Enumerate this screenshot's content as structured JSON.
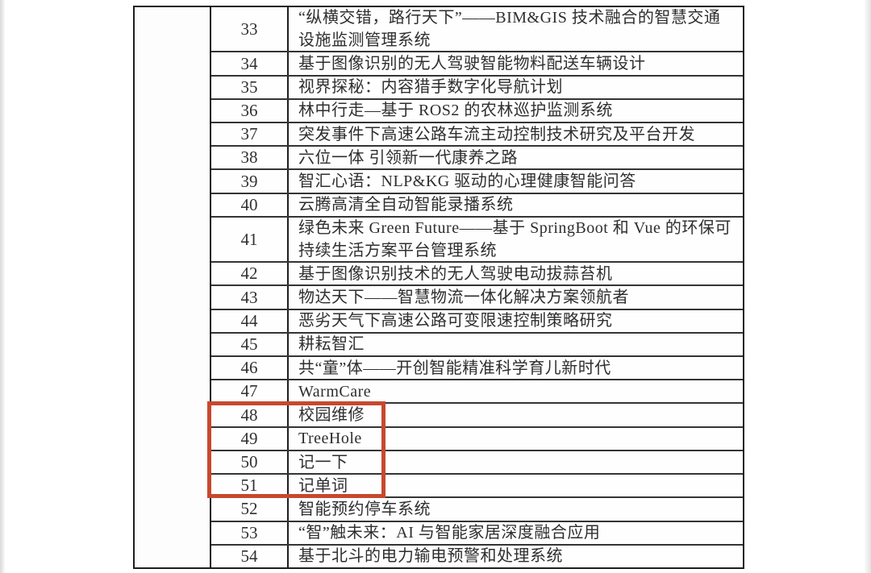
{
  "document": {
    "type": "scanned-table-page",
    "background": "#ffffff"
  },
  "table": {
    "rows": [
      {
        "no": "33",
        "title": "“纵横交错，路行天下”——BIM&GIS 技术融合的智慧交通设施监测管理系统",
        "tall": true,
        "highlighted": false
      },
      {
        "no": "34",
        "title": "基于图像识别的无人驾驶智能物料配送车辆设计",
        "tall": false,
        "highlighted": false
      },
      {
        "no": "35",
        "title": "视界探秘：内容猎手数字化导航计划",
        "tall": false,
        "highlighted": false
      },
      {
        "no": "36",
        "title": "林中行走—基于 ROS2 的农林巡护监测系统",
        "tall": false,
        "highlighted": false
      },
      {
        "no": "37",
        "title": "突发事件下高速公路车流主动控制技术研究及平台开发",
        "tall": false,
        "highlighted": false
      },
      {
        "no": "38",
        "title": "六位一体 引领新一代康养之路",
        "tall": false,
        "highlighted": false
      },
      {
        "no": "39",
        "title": "智汇心语：NLP&KG 驱动的心理健康智能问答",
        "tall": false,
        "highlighted": false
      },
      {
        "no": "40",
        "title": "云腾高清全自动智能录播系统",
        "tall": false,
        "highlighted": false
      },
      {
        "no": "41",
        "title": "绿色未来 Green Future——基于 SpringBoot 和 Vue 的环保可持续生活方案平台管理系统",
        "tall": true,
        "highlighted": false
      },
      {
        "no": "42",
        "title": "基于图像识别技术的无人驾驶电动拔蒜苔机",
        "tall": false,
        "highlighted": false
      },
      {
        "no": "43",
        "title": "物达天下——智慧物流一体化解决方案领航者",
        "tall": false,
        "highlighted": false
      },
      {
        "no": "44",
        "title": "恶劣天气下高速公路可变限速控制策略研究",
        "tall": false,
        "highlighted": false
      },
      {
        "no": "45",
        "title": "耕耘智汇",
        "tall": false,
        "highlighted": false
      },
      {
        "no": "46",
        "title": "共“童”体——开创智能精准科学育儿新时代",
        "tall": false,
        "highlighted": false
      },
      {
        "no": "47",
        "title": "WarmCare",
        "tall": false,
        "highlighted": false
      },
      {
        "no": "48",
        "title": "校园维修",
        "tall": false,
        "highlighted": true
      },
      {
        "no": "49",
        "title": "TreeHole",
        "tall": false,
        "highlighted": true
      },
      {
        "no": "50",
        "title": "记一下",
        "tall": false,
        "highlighted": true
      },
      {
        "no": "51",
        "title": "记单词",
        "tall": false,
        "highlighted": true
      },
      {
        "no": "52",
        "title": "智能预约停车系统",
        "tall": false,
        "highlighted": false
      },
      {
        "no": "53",
        "title": "“智”触未来：AI 与智能家居深度融合应用",
        "tall": false,
        "highlighted": false
      },
      {
        "no": "54",
        "title": "基于北斗的电力输电预警和处理系统",
        "tall": false,
        "highlighted": false
      }
    ]
  },
  "highlight": {
    "color": "#c6492e",
    "marked_rows": [
      "48",
      "49",
      "50",
      "51"
    ]
  }
}
